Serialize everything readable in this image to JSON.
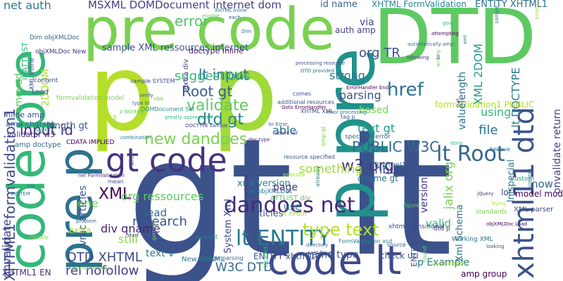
{
  "word_cloud": {
    "background": "#ffffff",
    "words": [
      {
        "text": "gt lt",
        "color": "#3b528b"
      },
      {
        "text": "p",
        "color": "#b5de2b"
      },
      {
        "text": "p",
        "color": "#a0da39"
      },
      {
        "text": "DTD",
        "color": "#5ec962"
      },
      {
        "text": "pre code",
        "color": "#7ad151"
      },
      {
        "text": "p pre",
        "color": "#21918c"
      },
      {
        "text": "code pre",
        "color": "#35b779"
      },
      {
        "text": "code lt",
        "color": "#3e4989"
      },
      {
        "text": "gt code",
        "color": "#46337f"
      },
      {
        "text": "pre p",
        "color": "#2c728e"
      },
      {
        "text": "xhtml11 dtd",
        "color": "#3b528b"
      },
      {
        "text": "dandoes net",
        "color": "#482878"
      },
      {
        "text": "lt ENTITY",
        "color": "#2a788e"
      },
      {
        "text": "lt Root",
        "color": "#31688e"
      },
      {
        "text": "type text",
        "color": "#b5de2b"
      },
      {
        "text": "new dandoes",
        "color": "#7ad151"
      },
      {
        "text": "dtd gt",
        "color": "#26828e"
      },
      {
        "text": "href",
        "color": "#2c728e"
      },
      {
        "text": "Root gt",
        "color": "#365d8d"
      },
      {
        "text": "w3 org",
        "color": "#46327e"
      },
      {
        "text": "XHTML1 formvalidation1",
        "color": "#3e4a89"
      },
      {
        "text": "net auth",
        "color": "#2a788e"
      },
      {
        "text": "MSXML DOMDocument internet dom",
        "color": "#433e85"
      },
      {
        "text": "id name",
        "color": "#31688e"
      },
      {
        "text": "XHTML FormValidation",
        "color": "#25858e"
      },
      {
        "text": "ENTITY XHTML1",
        "color": "#2e6f8e"
      },
      {
        "text": "error",
        "color": "#52c569"
      },
      {
        "text": "sample XML ressources internet",
        "color": "#3b528b"
      },
      {
        "text": "lt input",
        "color": "#2a788e"
      },
      {
        "text": "org TR",
        "color": "#3b528b"
      },
      {
        "text": "validate",
        "color": "#5ec962"
      },
      {
        "text": "suggestions",
        "color": "#35b779"
      },
      {
        "text": "input id",
        "color": "#472f7d"
      },
      {
        "text": "PUBLIC W3C",
        "color": "#31688e"
      },
      {
        "text": "XML 2DOM",
        "color": "#1fa088"
      },
      {
        "text": "XML",
        "color": "#440154"
      },
      {
        "text": "lt DOCTYPE",
        "color": "#2a788e"
      },
      {
        "text": "DTD XHTML",
        "color": "#3e4989"
      },
      {
        "text": "W3C DTD",
        "color": "#31688e"
      },
      {
        "text": "rel nofollow",
        "color": "#433e85"
      },
      {
        "text": "file",
        "color": "#2c728e"
      },
      {
        "text": "using",
        "color": "#35b779"
      },
      {
        "text": "text gt",
        "color": "#1f9e89"
      },
      {
        "text": "attribute",
        "color": "#3e4989"
      },
      {
        "text": "something",
        "color": "#a0da39"
      },
      {
        "text": "org ressources",
        "color": "#5ec962"
      },
      {
        "text": "xml version",
        "color": "#26828e"
      },
      {
        "text": "lead",
        "color": "#31688e"
      },
      {
        "text": "research",
        "color": "#3b528b"
      },
      {
        "text": "still",
        "color": "#90d743"
      },
      {
        "text": "div qname",
        "color": "#481f70"
      },
      {
        "text": "one",
        "color": "#7ad151"
      },
      {
        "text": "vrac articles",
        "color": "#3b528b"
      },
      {
        "text": "onvalidate",
        "color": "#3e4989"
      },
      {
        "text": "formvalidation1 PUBLIC",
        "color": "#b5de2b"
      },
      {
        "text": "strong",
        "color": "#2a788e"
      },
      {
        "text": "parsing",
        "color": "#3b528b"
      },
      {
        "text": "based",
        "color": "#7ad151"
      },
      {
        "text": "able",
        "color": "#31688e"
      },
      {
        "text": "page",
        "color": "#46327e"
      },
      {
        "text": "valuelength",
        "color": "#2e6f8e"
      },
      {
        "text": "now",
        "color": "#31688e"
      },
      {
        "text": "version",
        "color": "#46337f"
      },
      {
        "text": "jalix org",
        "color": "#7ad151"
      },
      {
        "text": "lot",
        "color": "#3e4989"
      },
      {
        "text": "model mod",
        "color": "#440154"
      },
      {
        "text": "valid",
        "color": "#35b779"
      },
      {
        "text": "p Example",
        "color": "#2a788e"
      },
      {
        "text": "name type",
        "color": "#3b528b"
      },
      {
        "text": "via",
        "color": "#3e4989"
      },
      {
        "text": "auth amp",
        "color": "#414487"
      },
      {
        "text": "2DDOM",
        "color": "#a8db34"
      },
      {
        "text": "removed",
        "color": "#5ec962"
      },
      {
        "text": "length gt",
        "color": "#3b528b"
      },
      {
        "text": "Xml Schema",
        "color": "#2c728e"
      },
      {
        "text": "System Xml",
        "color": "#3e4989"
      },
      {
        "text": "articles",
        "color": "#3b528b"
      },
      {
        "text": "use",
        "color": "#26828e"
      },
      {
        "text": "text v",
        "color": "#2a788e"
      },
      {
        "text": "qname gt",
        "color": "#2c728e"
      },
      {
        "text": "onvalidate return",
        "color": "#414487"
      },
      {
        "text": "Inlspecial",
        "color": "#2a788e"
      },
      {
        "text": "extra",
        "color": "#a0da39"
      },
      {
        "text": "XHTML1 EN",
        "color": "#472f7d"
      },
      {
        "text": "ENTITY xhtml11",
        "color": "#3b528b"
      },
      {
        "text": "check uri",
        "color": "#3b528b"
      },
      {
        "text": "amp group",
        "color": "#440154"
      },
      {
        "text": "ENTITY Inlspecial",
        "color": "#3e4989"
      },
      {
        "text": "TR xhtml1",
        "color": "#31688e"
      },
      {
        "text": "XML parser",
        "color": "#3e4989"
      },
      {
        "text": "Inline amp",
        "color": "#3b528b"
      },
      {
        "text": "amp charset",
        "color": "#31688e"
      },
      {
        "text": "validator w3",
        "color": "#46327e"
      },
      {
        "text": "layer",
        "color": "#21918c"
      },
      {
        "text": "Load",
        "color": "#31688e"
      },
      {
        "text": "content",
        "color": "#3b528b"
      },
      {
        "text": "amp doctype",
        "color": "#31688e"
      },
      {
        "text": "doctype Inline",
        "color": "#481f70"
      },
      {
        "text": "lt ATTLIST",
        "color": "#35b779"
      },
      {
        "text": "extra div",
        "color": "#433e85"
      },
      {
        "text": "XML Inline",
        "color": "#3b528b"
      },
      {
        "text": "Dim objXMLDoc",
        "color": "#31688e"
      },
      {
        "text": "objXMLDoc New",
        "color": "#46327e"
      },
      {
        "text": "formvalidation model",
        "color": "#7ad151"
      },
      {
        "text": "CDATA IMPLIED",
        "color": "#440154"
      },
      {
        "text": "DOMDocument Set",
        "color": "#21918c"
      },
      {
        "text": "Set objXMLDoc",
        "color": "#2a788e"
      },
      {
        "text": "ATTLIST div",
        "color": "#5ec962"
      },
      {
        "text": "lt XPath",
        "color": "#a0da39"
      },
      {
        "text": "FormValidation xsd",
        "color": "#2a788e"
      },
      {
        "text": "XHTML XML",
        "color": "#3e4989"
      },
      {
        "text": "amp gt",
        "color": "#7ad151"
      },
      {
        "text": "resource specified",
        "color": "#3b528b"
      },
      {
        "text": "specified error",
        "color": "#31688e"
      },
      {
        "text": "dtd p",
        "color": "#46327e"
      },
      {
        "text": "Working XML",
        "color": "#2c728e"
      },
      {
        "text": "Trying",
        "color": "#b5de2b"
      },
      {
        "text": "xhtml transitional",
        "color": "#3e4989"
      },
      {
        "text": "New MSXML",
        "color": "#2a788e"
      },
      {
        "text": "located",
        "color": "#35b779"
      },
      {
        "text": "directory",
        "color": "#31688e"
      },
      {
        "text": "source",
        "color": "#3b528b"
      },
      {
        "text": "found",
        "color": "#5ec962"
      },
      {
        "text": "Load sample",
        "color": "#a0da39"
      },
      {
        "text": "going wrong",
        "color": "#7ad151"
      },
      {
        "text": "begin parsing",
        "color": "#31688e"
      },
      {
        "text": "net FormValidation",
        "color": "#46327e"
      },
      {
        "text": "mostly",
        "color": "#7ad151"
      },
      {
        "text": "problem",
        "color": "#31688e"
      },
      {
        "text": "mean",
        "color": "#3b528b"
      },
      {
        "text": "element",
        "color": "#2a788e"
      },
      {
        "text": "looking",
        "color": "#3e4989"
      },
      {
        "text": "objXMLDoc Load",
        "color": "#440154"
      },
      {
        "text": "standards",
        "color": "#7ad151"
      },
      {
        "text": "custom",
        "color": "#21918c"
      },
      {
        "text": "sample SYSTEM",
        "color": "#3e4989"
      },
      {
        "text": "Set",
        "color": "#31688e"
      },
      {
        "text": "SYSTEM",
        "color": "#2a788e"
      },
      {
        "text": "validator",
        "color": "#46327e"
      },
      {
        "text": "execute",
        "color": "#a0da39"
      },
      {
        "text": "figure",
        "color": "#5ec962"
      },
      {
        "text": "cant figure",
        "color": "#3b528b"
      },
      {
        "text": "combination",
        "color": "#2a788e"
      },
      {
        "text": "write",
        "color": "#31688e"
      },
      {
        "text": "getting",
        "color": "#7ad151"
      },
      {
        "text": "start",
        "color": "#3b528b"
      },
      {
        "text": "created",
        "color": "#2c728e"
      },
      {
        "text": "jQuery",
        "color": "#46327e"
      },
      {
        "text": "dono",
        "color": "#35b779"
      },
      {
        "text": "believe",
        "color": "#31688e"
      },
      {
        "text": "comes",
        "color": "#3e4989"
      },
      {
        "text": "additional resources",
        "color": "#3b528b"
      },
      {
        "text": "Goto ErrorHandler",
        "color": "#440154"
      },
      {
        "text": "error processing",
        "color": "#2a788e"
      },
      {
        "text": "tag p",
        "color": "#3b528b"
      },
      {
        "text": "br Error",
        "color": "#31688e"
      },
      {
        "text": "doc type",
        "color": "#46327e"
      },
      {
        "text": "xhtml ref",
        "color": "#3e4989"
      },
      {
        "text": "already",
        "color": "#2a788e"
      },
      {
        "text": "allow",
        "color": "#a0da39"
      },
      {
        "text": "p Working",
        "color": "#5ec962"
      },
      {
        "text": "verify",
        "color": "#3b528b"
      },
      {
        "text": "type br",
        "color": "#31688e"
      },
      {
        "text": "VB6",
        "color": "#7ad151"
      },
      {
        "text": "greatly appreciated",
        "color": "#35b779"
      },
      {
        "text": "DOCTYPE sample",
        "color": "#3e4989"
      },
      {
        "text": "ErrorHandler End",
        "color": "#440154"
      },
      {
        "text": "DTD provided",
        "color": "#2a788e"
      },
      {
        "text": "processing resource",
        "color": "#3b528b"
      },
      {
        "text": "automatically amp",
        "color": "#31688e"
      },
      {
        "text": "following",
        "color": "#46327e"
      },
      {
        "text": "writing",
        "color": "#7ad151"
      },
      {
        "text": "br",
        "color": "#3b528b"
      },
      {
        "text": "xml",
        "color": "#31688e"
      },
      {
        "text": "sample",
        "color": "#2a788e"
      },
      {
        "text": "empty",
        "color": "#a0da39"
      },
      {
        "text": "cuit",
        "color": "#3e4989"
      },
      {
        "text": "goal",
        "color": "#35b779"
      },
      {
        "text": "attempting",
        "color": "#440154"
      },
      {
        "text": "eligible",
        "color": "#5ec962"
      },
      {
        "text": "XHTML Inline",
        "color": "#2a788e"
      },
      {
        "text": "each",
        "color": "#3b528b"
      },
      {
        "text": "Dim",
        "color": "#31688e"
      }
    ]
  }
}
